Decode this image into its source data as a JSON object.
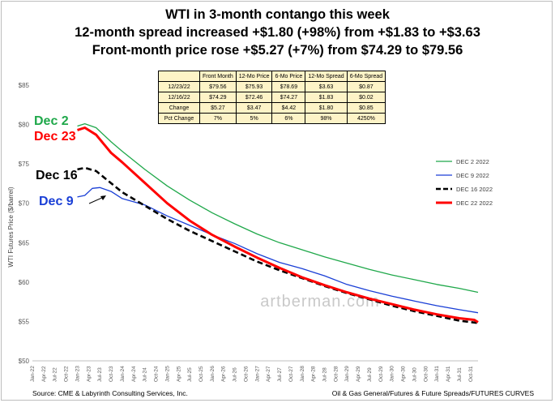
{
  "titles": {
    "line1": "WTI in 3-month contango this week",
    "line2": "12-month spread increased +$1.80 (+98%) from +$1.83 to +$3.63",
    "line3": "Front-month price rose +$5.27 (+7%) from $74.29 to $79.56"
  },
  "table": {
    "headers": [
      "",
      "Front Month",
      "12-Mo Price",
      "6-Mo Price",
      "12-Mo Spread",
      "6-Mo Spread"
    ],
    "rows": [
      [
        "12/23/22",
        "$79.56",
        "$75.93",
        "$78.69",
        "$3.63",
        "$0.87"
      ],
      [
        "12/16/22",
        "$74.29",
        "$72.46",
        "$74.27",
        "$1.83",
        "$0.02"
      ],
      [
        "Change",
        "$5.27",
        "$3.47",
        "$4.42",
        "$1.80",
        "$0.85"
      ],
      [
        "Pct Change",
        "7%",
        "5%",
        "6%",
        "98%",
        "4250%"
      ]
    ]
  },
  "watermark": "artberman.com",
  "source_left": "Source: CME & Labyrinth Consulting Services, Inc.",
  "source_right": "Oil & Gas General/Futures & Future Spreads/FUTURES CURVES",
  "curve_labels": {
    "dec2": "Dec 2",
    "dec23": "Dec 23",
    "dec16": "Dec 16",
    "dec9": "Dec 9"
  },
  "colors": {
    "dec2": "#1fa84a",
    "dec9": "#1a3fd6",
    "dec16": "#000000",
    "dec22": "#ff0000"
  },
  "chart_data": {
    "type": "line",
    "ylabel": "WTI Futures  Price ($/barrel)",
    "xlabel": "",
    "ylim": [
      50,
      85
    ],
    "yticks": [
      50,
      55,
      60,
      65,
      70,
      75,
      80,
      85
    ],
    "ytick_labels": [
      "$50",
      "$55",
      "$60",
      "$65",
      "$70",
      "$75",
      "$80",
      "$85"
    ],
    "xticks": [
      "Jan-22",
      "Apr-22",
      "Jul-22",
      "Oct-22",
      "Jan-23",
      "Apr-23",
      "Jul-23",
      "Oct-23",
      "Jan-24",
      "Apr-24",
      "Jul-24",
      "Oct-24",
      "Jan-25",
      "Apr-25",
      "Jul-25",
      "Oct-25",
      "Jan-26",
      "Apr-26",
      "Jul-26",
      "Oct-26",
      "Jan-27",
      "Apr-27",
      "Jul-27",
      "Oct-27",
      "Jan-28",
      "Apr-28",
      "Jul-28",
      "Oct-28",
      "Jan-29",
      "Apr-29",
      "Jul-29",
      "Oct-29",
      "Jan-30",
      "Apr-30",
      "Jul-30",
      "Oct-30",
      "Jan-31",
      "Apr-31",
      "Jul-31",
      "Oct-31"
    ],
    "x_range": [
      "Jan-22",
      "Dec-31"
    ],
    "grid": false,
    "legend_position": "right",
    "series": [
      {
        "name": "DEC 2 2022",
        "key": "dec2",
        "style": "solid",
        "points": [
          [
            "Jan-23",
            79.8
          ],
          [
            "Mar-23",
            80.1
          ],
          [
            "Jun-23",
            79.6
          ],
          [
            "Oct-23",
            77.8
          ],
          [
            "Jan-24",
            76.6
          ],
          [
            "Jul-24",
            74.3
          ],
          [
            "Jan-25",
            72.2
          ],
          [
            "Jul-25",
            70.4
          ],
          [
            "Jan-26",
            68.8
          ],
          [
            "Jul-26",
            67.4
          ],
          [
            "Jan-27",
            66.1
          ],
          [
            "Jul-27",
            65.0
          ],
          [
            "Jan-28",
            64.1
          ],
          [
            "Jul-28",
            63.2
          ],
          [
            "Jan-29",
            62.4
          ],
          [
            "Jul-29",
            61.6
          ],
          [
            "Jan-30",
            60.9
          ],
          [
            "Jul-30",
            60.3
          ],
          [
            "Jan-31",
            59.7
          ],
          [
            "Jul-31",
            59.2
          ],
          [
            "Dec-31",
            58.7
          ]
        ]
      },
      {
        "name": "DEC 9 2022",
        "key": "dec9",
        "style": "solid",
        "points": [
          [
            "Jan-23",
            70.8
          ],
          [
            "Mar-23",
            71.0
          ],
          [
            "May-23",
            71.9
          ],
          [
            "Jul-23",
            72.0
          ],
          [
            "Oct-23",
            71.5
          ],
          [
            "Jan-24",
            70.6
          ],
          [
            "Jul-24",
            69.8
          ],
          [
            "Jan-25",
            68.4
          ],
          [
            "Jul-25",
            67.2
          ],
          [
            "Jan-26",
            66.0
          ],
          [
            "Jul-26",
            64.9
          ],
          [
            "Jan-27",
            63.6
          ],
          [
            "Jul-27",
            62.5
          ],
          [
            "Jan-28",
            61.7
          ],
          [
            "Jul-28",
            60.8
          ],
          [
            "Jan-29",
            59.7
          ],
          [
            "Jul-29",
            58.9
          ],
          [
            "Jan-30",
            58.2
          ],
          [
            "Jul-30",
            57.6
          ],
          [
            "Jan-31",
            57.0
          ],
          [
            "Jul-31",
            56.5
          ],
          [
            "Dec-31",
            56.1
          ]
        ]
      },
      {
        "name": "DEC 16 2022",
        "key": "dec16",
        "style": "dashed",
        "points": [
          [
            "Jan-23",
            74.3
          ],
          [
            "Mar-23",
            74.5
          ],
          [
            "Jun-23",
            74.1
          ],
          [
            "Jan-24",
            71.4
          ],
          [
            "Jul-24",
            69.7
          ],
          [
            "Jan-25",
            68.0
          ],
          [
            "Jul-25",
            66.5
          ],
          [
            "Jan-26",
            65.2
          ],
          [
            "Jul-26",
            63.9
          ],
          [
            "Jan-27",
            62.6
          ],
          [
            "Jul-27",
            61.5
          ],
          [
            "Jan-28",
            60.5
          ],
          [
            "Jul-28",
            59.5
          ],
          [
            "Jan-29",
            58.6
          ],
          [
            "Jul-29",
            57.8
          ],
          [
            "Jan-30",
            57.0
          ],
          [
            "Jul-30",
            56.3
          ],
          [
            "Jan-31",
            55.7
          ],
          [
            "Jul-31",
            55.1
          ],
          [
            "Dec-31",
            54.8
          ]
        ]
      },
      {
        "name": "DEC 22 2022",
        "key": "dec22",
        "style": "solid",
        "points": [
          [
            "Jan-23",
            79.3
          ],
          [
            "Mar-23",
            79.6
          ],
          [
            "Jun-23",
            78.7
          ],
          [
            "Oct-23",
            76.4
          ],
          [
            "Jan-24",
            75.2
          ],
          [
            "Jul-24",
            72.6
          ],
          [
            "Jan-25",
            70.0
          ],
          [
            "Jul-25",
            67.8
          ],
          [
            "Jan-26",
            66.0
          ],
          [
            "Jul-26",
            64.5
          ],
          [
            "Jan-27",
            63.1
          ],
          [
            "Jul-27",
            61.8
          ],
          [
            "Jan-28",
            60.6
          ],
          [
            "Jul-28",
            59.6
          ],
          [
            "Jan-29",
            58.7
          ],
          [
            "Jul-29",
            57.9
          ],
          [
            "Jan-30",
            57.2
          ],
          [
            "Jul-30",
            56.5
          ],
          [
            "Jan-31",
            55.9
          ],
          [
            "Jul-31",
            55.4
          ],
          [
            "Nov-31",
            55.2
          ],
          [
            "Dec-31",
            54.9
          ]
        ]
      }
    ]
  }
}
